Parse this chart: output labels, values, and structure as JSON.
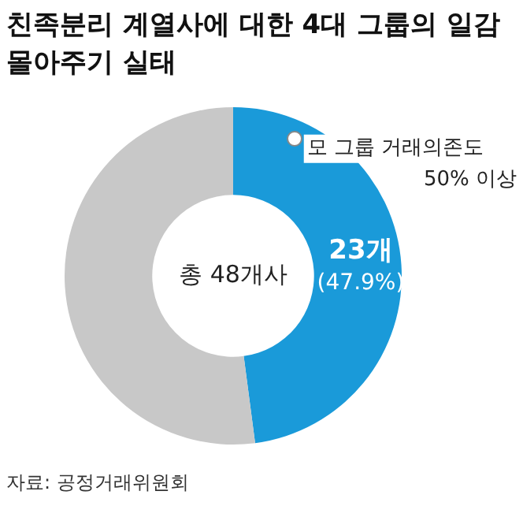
{
  "chart_data": {
    "type": "donut",
    "title": "친족분리 계열사에 대한 4대 그룹의 일감 몰아주기 실태",
    "categories": [
      "모 그룹 거래의존도 50% 이상",
      null
    ],
    "values": [
      23,
      25
    ],
    "colors": [
      "#1a9ad9",
      "#c8c8c8"
    ],
    "value_labels": [
      "23개 (47.9%)",
      null
    ],
    "legend": false,
    "annotations": [
      "총 48개사",
      "자료: 공정거래위원회"
    ]
  }
}
